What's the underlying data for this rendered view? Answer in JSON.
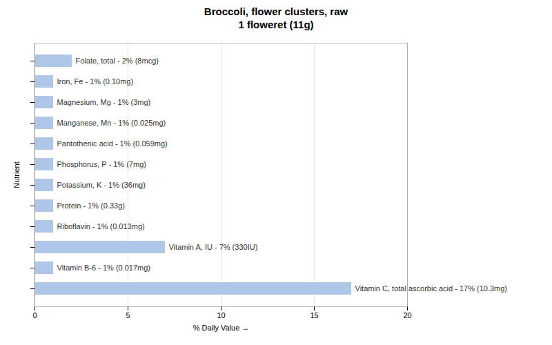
{
  "chart_data": {
    "type": "bar",
    "orientation": "horizontal",
    "title": "Broccoli, flower clusters, raw\n1 floweret (11g)",
    "xlabel": "% Daily Value",
    "ylabel": "Nutrient",
    "categories": [
      "Folate, total - 2% (8mcg)",
      "Iron, Fe - 1% (0.10mg)",
      "Magnesium, Mg - 1% (3mg)",
      "Manganese, Mn - 1% (0.025mg)",
      "Pantothenic acid - 1% (0.059mg)",
      "Phosphorus, P - 1% (7mg)",
      "Potassium, K - 1% (36mg)",
      "Protein - 1% (0.33g)",
      "Riboflavin - 1% (0.013mg)",
      "Vitamin A, IU - 7% (330IU)",
      "Vitamin B-6 - 1% (0.017mg)",
      "Vitamin C, total ascorbic acid - 17% (10.3mg)"
    ],
    "values": [
      2,
      1,
      1,
      1,
      1,
      1,
      1,
      1,
      1,
      7,
      1,
      17
    ],
    "color": "#aec6e8",
    "xlim": [
      0,
      20
    ],
    "xticks": [
      0,
      5,
      10,
      15,
      20
    ],
    "grid": true,
    "tick_labels": "x"
  }
}
